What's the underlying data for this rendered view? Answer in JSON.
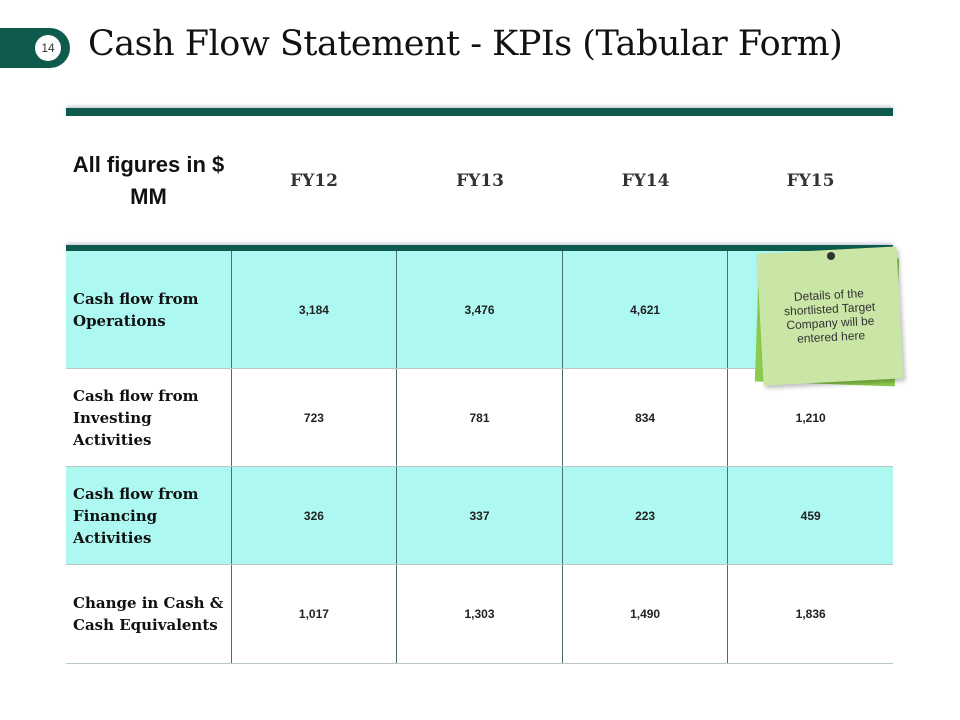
{
  "slide": {
    "number": "14",
    "title": "Cash Flow Statement - KPIs (Tabular Form)"
  },
  "table": {
    "corner_label": "All figures in $ MM",
    "columns": [
      "FY12",
      "FY13",
      "FY14",
      "FY15"
    ],
    "rows": [
      {
        "label": "Cash flow from Operations",
        "values": [
          "3,184",
          "3,476",
          "4,621",
          ""
        ]
      },
      {
        "label": "Cash flow from Investing Activities",
        "values": [
          "723",
          "781",
          "834",
          "1,210"
        ]
      },
      {
        "label": "Cash flow from Financing Activities",
        "values": [
          "326",
          "337",
          "223",
          "459"
        ]
      },
      {
        "label": "Change in Cash & Cash Equivalents",
        "values": [
          "1,017",
          "1,303",
          "1,490",
          "1,836"
        ]
      }
    ]
  },
  "sticky_note": {
    "text": "Details of the shortlisted Target Company will be entered here",
    "icon": "pushpin-icon"
  },
  "colors": {
    "accent": "#0e5a4c",
    "row_highlight": "#aef8f2",
    "note": "#c9e6a6"
  }
}
